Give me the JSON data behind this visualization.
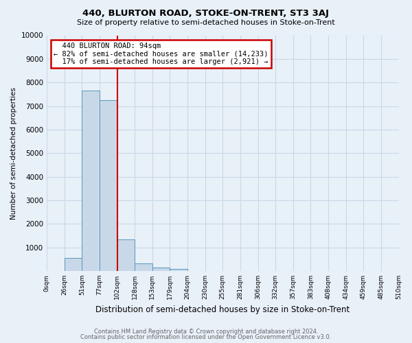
{
  "title": "440, BLURTON ROAD, STOKE-ON-TRENT, ST3 3AJ",
  "subtitle": "Size of property relative to semi-detached houses in Stoke-on-Trent",
  "xlabel": "Distribution of semi-detached houses by size in Stoke-on-Trent",
  "ylabel": "Number of semi-detached properties",
  "footer_line1": "Contains HM Land Registry data © Crown copyright and database right 2024.",
  "footer_line2": "Contains public sector information licensed under the Open Government Licence v3.0.",
  "bin_labels": [
    "0sqm",
    "26sqm",
    "51sqm",
    "77sqm",
    "102sqm",
    "128sqm",
    "153sqm",
    "179sqm",
    "204sqm",
    "230sqm",
    "255sqm",
    "281sqm",
    "306sqm",
    "332sqm",
    "357sqm",
    "383sqm",
    "408sqm",
    "434sqm",
    "459sqm",
    "485sqm",
    "510sqm"
  ],
  "bar_values": [
    0,
    550,
    7650,
    7250,
    1350,
    320,
    130,
    90,
    0,
    0,
    0,
    0,
    0,
    0,
    0,
    0,
    0,
    0,
    0,
    0
  ],
  "bar_color": "#c8d8e8",
  "bar_edge_color": "#5599bb",
  "property_label": "440 BLURTON ROAD: 94sqm",
  "pct_smaller": 82,
  "count_smaller": 14233,
  "pct_larger": 17,
  "count_larger": 2921,
  "ylim": [
    0,
    10000
  ],
  "yticks": [
    0,
    1000,
    2000,
    3000,
    4000,
    5000,
    6000,
    7000,
    8000,
    9000,
    10000
  ],
  "annotation_box_color": "#ffffff",
  "annotation_box_edge_color": "#cc0000",
  "red_line_color": "#cc0000",
  "grid_color": "#c8d8e8",
  "bg_color": "#e8f0f8"
}
